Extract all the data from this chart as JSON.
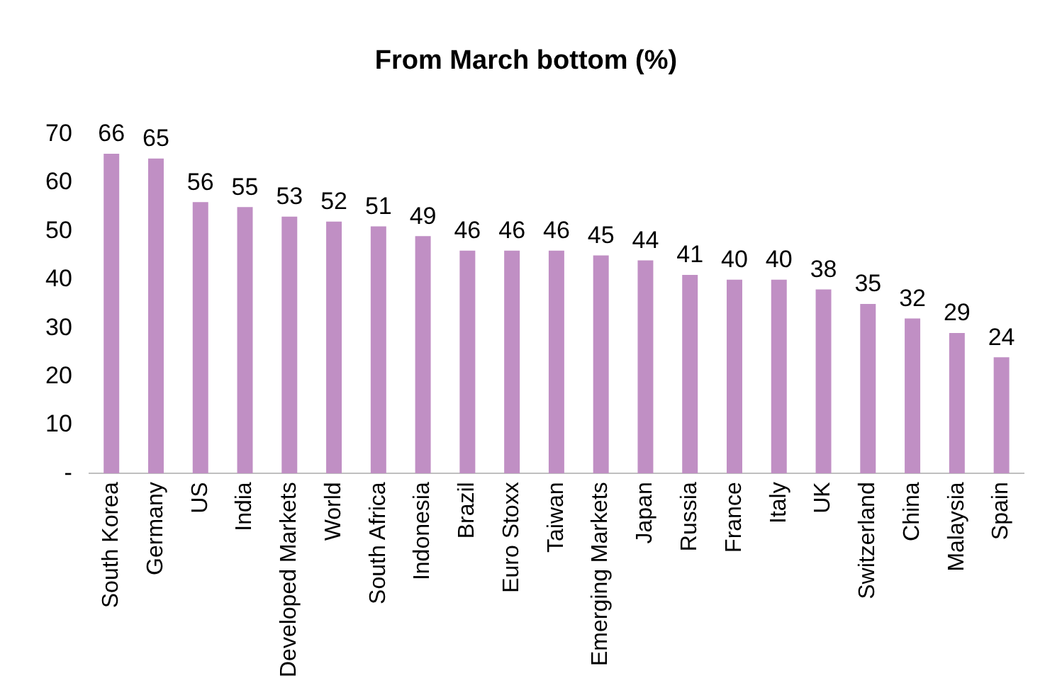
{
  "chart_data": {
    "type": "bar",
    "title": "From March bottom (%)",
    "categories": [
      "South Korea",
      "Germany",
      "US",
      "India",
      "Developed Markets",
      "World",
      "South Africa",
      "Indonesia",
      "Brazil",
      "Euro Stoxx",
      "Taiwan",
      "Emerging Markets",
      "Japan",
      "Russia",
      "France",
      "Italy",
      "UK",
      "Switzerland",
      "China",
      "Malaysia",
      "Spain"
    ],
    "values": [
      66,
      65,
      56,
      55,
      53,
      52,
      51,
      49,
      46,
      46,
      46,
      45,
      44,
      41,
      40,
      40,
      38,
      35,
      32,
      29,
      24
    ],
    "color": "#c08fc4",
    "ylim": [
      0,
      70
    ],
    "yticks": [
      {
        "value": 0,
        "label": "-"
      },
      10,
      20,
      30,
      40,
      50,
      60,
      70
    ],
    "grid": false,
    "legend": false,
    "data_labels": true
  }
}
